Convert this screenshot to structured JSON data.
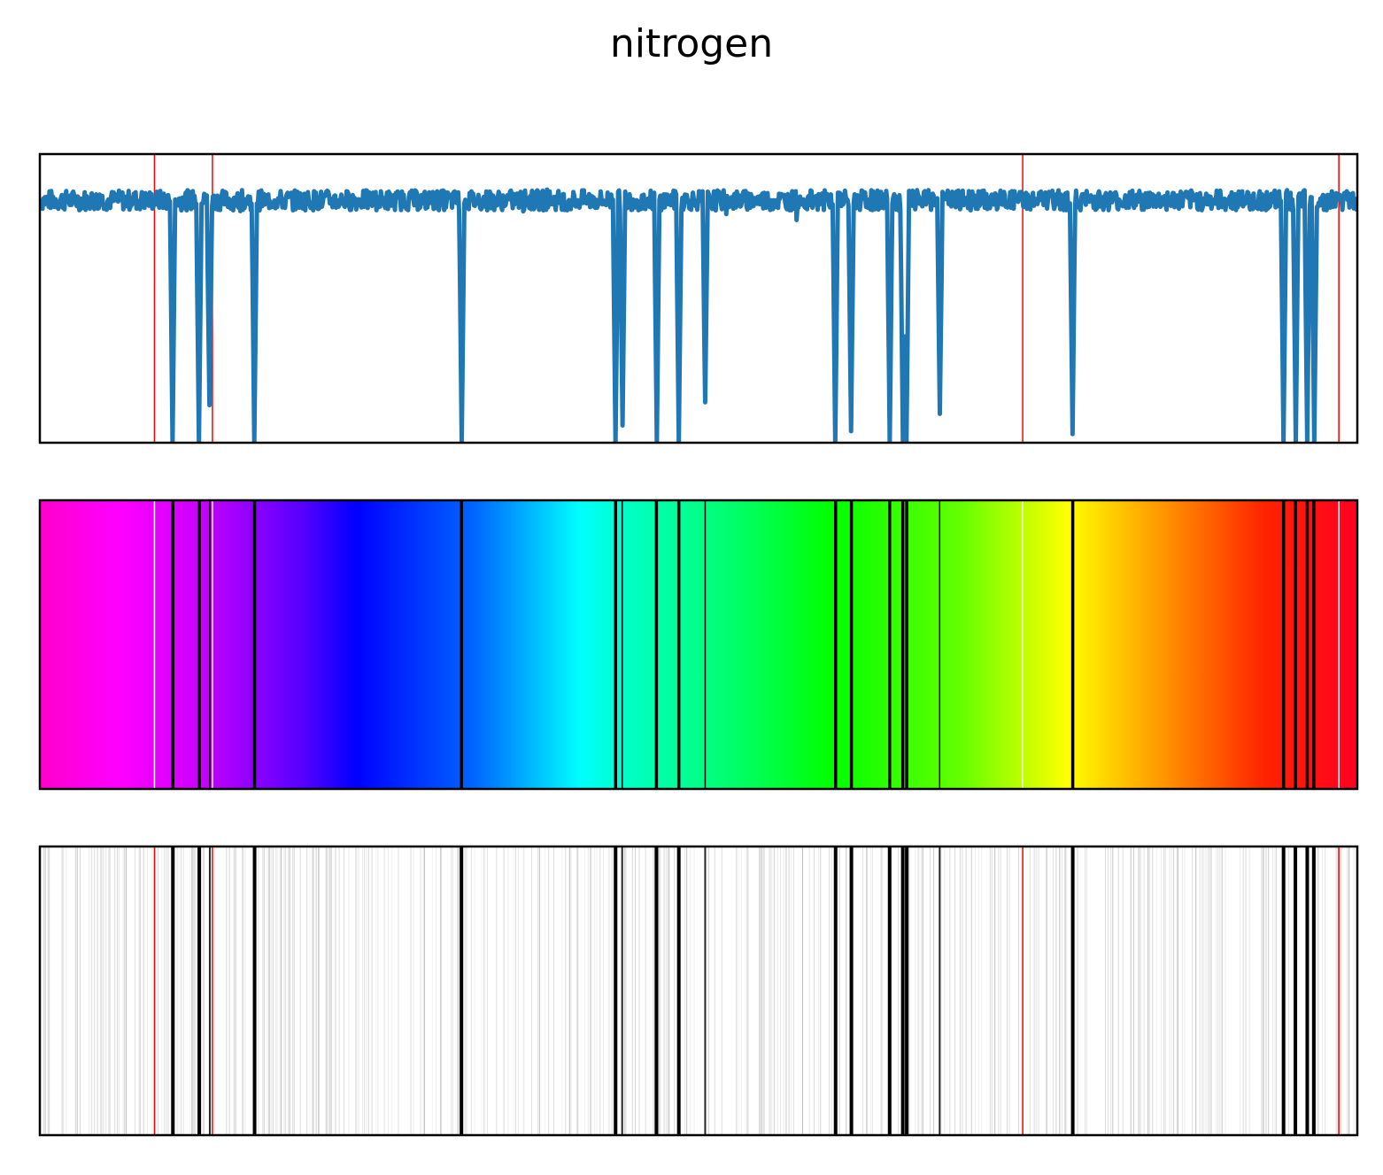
{
  "chart_data": {
    "type": "line",
    "title": "nitrogen",
    "xlabel": "",
    "ylabel": "",
    "axes_ticks": false,
    "grid": false,
    "xlim": [
      0,
      1
    ],
    "ylim": [
      0,
      1
    ],
    "series_color": "#1f77b4",
    "reference_line_color": "#ff0000",
    "reference_lines_x": [
      0.087,
      0.131,
      0.746,
      0.986
    ],
    "baseline_level": 0.84,
    "noise_amplitude": 0.035,
    "absorption_dips": [
      {
        "x": 0.101,
        "depth": 0.0
      },
      {
        "x": 0.121,
        "depth": 0.0
      },
      {
        "x": 0.129,
        "depth": 0.13
      },
      {
        "x": 0.163,
        "depth": 0.0
      },
      {
        "x": 0.32,
        "depth": 0.0
      },
      {
        "x": 0.437,
        "depth": 0.0
      },
      {
        "x": 0.442,
        "depth": 0.06
      },
      {
        "x": 0.468,
        "depth": 0.0
      },
      {
        "x": 0.485,
        "depth": 0.0
      },
      {
        "x": 0.505,
        "depth": 0.14
      },
      {
        "x": 0.604,
        "depth": 0.0
      },
      {
        "x": 0.616,
        "depth": 0.04
      },
      {
        "x": 0.645,
        "depth": 0.0
      },
      {
        "x": 0.655,
        "depth": 0.0
      },
      {
        "x": 0.658,
        "depth": 0.0
      },
      {
        "x": 0.683,
        "depth": 0.1
      },
      {
        "x": 0.784,
        "depth": 0.03
      },
      {
        "x": 0.944,
        "depth": 0.0
      },
      {
        "x": 0.953,
        "depth": 0.0
      },
      {
        "x": 0.962,
        "depth": 0.0
      },
      {
        "x": 0.967,
        "depth": 0.0
      }
    ],
    "spectrum_gradient": [
      {
        "pos": 0.0,
        "color": "#ff00cc"
      },
      {
        "pos": 0.06,
        "color": "#ff00ff"
      },
      {
        "pos": 0.12,
        "color": "#cc00ff"
      },
      {
        "pos": 0.2,
        "color": "#5500ff"
      },
      {
        "pos": 0.24,
        "color": "#0000ff"
      },
      {
        "pos": 0.33,
        "color": "#0066ff"
      },
      {
        "pos": 0.41,
        "color": "#00ffff"
      },
      {
        "pos": 0.44,
        "color": "#00ffcc"
      },
      {
        "pos": 0.53,
        "color": "#00ff66"
      },
      {
        "pos": 0.6,
        "color": "#00ff00"
      },
      {
        "pos": 0.7,
        "color": "#66ff00"
      },
      {
        "pos": 0.78,
        "color": "#ffff00"
      },
      {
        "pos": 0.85,
        "color": "#ff9900"
      },
      {
        "pos": 0.93,
        "color": "#ff2200"
      },
      {
        "pos": 1.0,
        "color": "#ff0022"
      }
    ]
  }
}
